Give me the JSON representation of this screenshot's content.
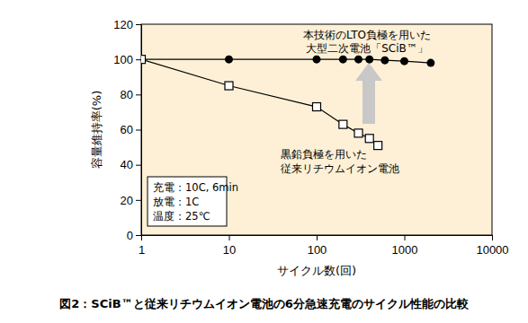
{
  "chart_data": {
    "type": "line",
    "title": "図2：SCiB™と従来リチウムイオン電池の6分急速充電のサイクル性能の比較",
    "xlabel": "サイクル数(回)",
    "ylabel": "容量維持率(%)",
    "log": "x",
    "grid": false,
    "xlim": [
      1,
      10000
    ],
    "xticks": [
      1,
      10,
      100,
      1000,
      10000
    ],
    "ylim": [
      0,
      120
    ],
    "yticks": [
      0,
      20,
      40,
      60,
      80,
      100,
      120
    ],
    "series": [
      {
        "color": "#000000",
        "marker": "circle",
        "line_style": "solid",
        "x": [
          1,
          10,
          100,
          200,
          300,
          400,
          600,
          1000,
          2000
        ],
        "values": [
          100,
          100,
          100,
          100,
          100,
          100,
          99.5,
          99,
          98
        ]
      },
      {
        "color": "#000000",
        "marker": "square",
        "line_style": "solid",
        "x": [
          1,
          10,
          100,
          200,
          300,
          400,
          500
        ],
        "values": [
          100,
          85,
          73,
          63,
          58,
          55,
          51
        ]
      }
    ],
    "annotations": [
      [
        "本技術のLTO負極を用いた",
        "大型二次電池「SCiB™」"
      ],
      [
        "黒鉛負極を用いた",
        "従来リチウムイオン電池"
      ],
      [
        "充電：10C, 6min",
        "放電：1C",
        "温度：25℃"
      ]
    ]
  }
}
